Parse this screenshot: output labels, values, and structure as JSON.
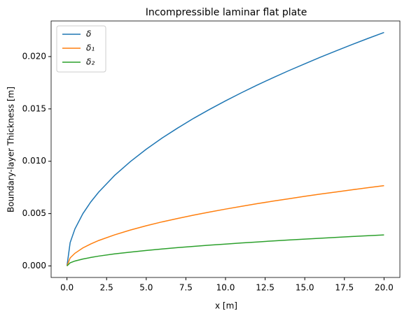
{
  "chart_data": {
    "type": "line",
    "title": "Incompressible laminar flat plate",
    "xlabel": "x [m]",
    "ylabel": "Boundary-layer Thickness [m]",
    "x": [
      0,
      0.2,
      0.5,
      1,
      1.5,
      2,
      3,
      4,
      5,
      6,
      7,
      8,
      9,
      10,
      11,
      12,
      13,
      14,
      15,
      16,
      17,
      18,
      19,
      20
    ],
    "series": [
      {
        "name": "δ",
        "color": "#1f77b4",
        "values": [
          0,
          0.00223,
          0.00353,
          0.00499,
          0.00611,
          0.00705,
          0.00864,
          0.00997,
          0.01115,
          0.01222,
          0.01319,
          0.01411,
          0.01496,
          0.01577,
          0.01654,
          0.01728,
          0.01798,
          0.01866,
          0.01931,
          0.01995,
          0.02056,
          0.02116,
          0.02174,
          0.0223
        ]
      },
      {
        "name": "δ₁",
        "color": "#ff7f0e",
        "values": [
          0,
          0.00077,
          0.00121,
          0.00172,
          0.0021,
          0.00243,
          0.00297,
          0.00343,
          0.00384,
          0.00421,
          0.00454,
          0.00486,
          0.00515,
          0.00543,
          0.00569,
          0.00595,
          0.00619,
          0.00642,
          0.00665,
          0.00687,
          0.00707,
          0.00728,
          0.00748,
          0.00767
        ]
      },
      {
        "name": "δ₂",
        "color": "#2ca02c",
        "values": [
          0,
          0.0003,
          0.00047,
          0.00066,
          0.00081,
          0.00094,
          0.00115,
          0.00132,
          0.00148,
          0.00162,
          0.00175,
          0.00187,
          0.00199,
          0.00209,
          0.0022,
          0.00229,
          0.00239,
          0.00248,
          0.00256,
          0.00265,
          0.00273,
          0.00281,
          0.00289,
          0.00296
        ]
      }
    ],
    "xlim": [
      -1,
      21
    ],
    "xticks": [
      {
        "value": 0,
        "label": "0.0"
      },
      {
        "value": 2.5,
        "label": "2.5"
      },
      {
        "value": 5,
        "label": "5.0"
      },
      {
        "value": 7.5,
        "label": "7.5"
      },
      {
        "value": 10,
        "label": "10.0"
      },
      {
        "value": 12.5,
        "label": "12.5"
      },
      {
        "value": 15,
        "label": "15.0"
      },
      {
        "value": 17.5,
        "label": "17.5"
      },
      {
        "value": 20,
        "label": "20.0"
      }
    ],
    "ylim": [
      -0.0011,
      0.0234
    ],
    "yticks": [
      {
        "value": 0,
        "label": "0.000"
      },
      {
        "value": 0.005,
        "label": "0.005"
      },
      {
        "value": 0.01,
        "label": "0.010"
      },
      {
        "value": 0.015,
        "label": "0.015"
      },
      {
        "value": 0.02,
        "label": "0.020"
      }
    ],
    "legend": "upper left",
    "grid": false
  }
}
